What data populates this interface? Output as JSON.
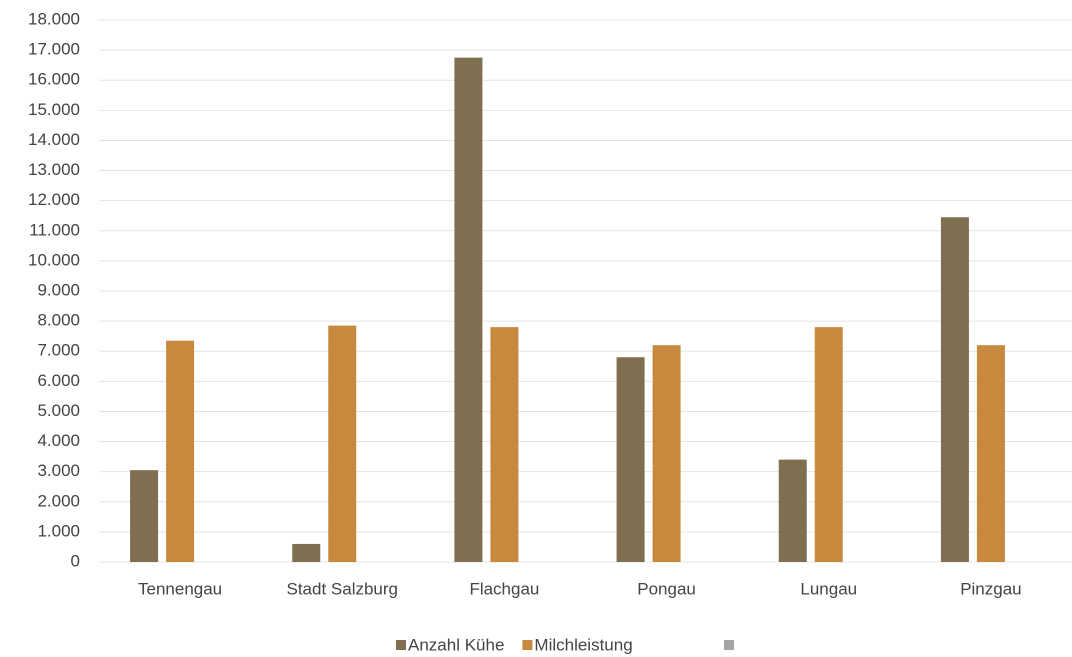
{
  "chart_data": {
    "type": "bar",
    "categories": [
      "Tennengau",
      "Stadt Salzburg",
      "Flachgau",
      "Pongau",
      "Lungau",
      "Pinzgau"
    ],
    "series": [
      {
        "name": "Anzahl Kühe",
        "color": "#7f6e50",
        "values": [
          3050,
          600,
          16750,
          6800,
          3400,
          11450
        ]
      },
      {
        "name": "Milchleistung",
        "color": "#c8893f",
        "values": [
          7350,
          7850,
          7800,
          7200,
          7800,
          7200
        ]
      }
    ],
    "ylim": [
      0,
      18000
    ],
    "yticks": [
      0,
      {
        "value": 1000,
        "label": "1.000"
      },
      {
        "value": 2000,
        "label": "2.000"
      },
      {
        "value": 3000,
        "label": "3.000"
      },
      {
        "value": 4000,
        "label": "4.000"
      },
      {
        "value": 5000,
        "label": "5.000"
      },
      {
        "value": 6000,
        "label": "6.000"
      },
      {
        "value": 7000,
        "label": "7.000"
      },
      {
        "value": 8000,
        "label": "8.000"
      },
      {
        "value": 9000,
        "label": "9.000"
      },
      {
        "value": 10000,
        "label": "10.000"
      },
      {
        "value": 11000,
        "label": "11.000"
      },
      {
        "value": 12000,
        "label": "12.000"
      },
      {
        "value": 13000,
        "label": "13.000"
      },
      {
        "value": 14000,
        "label": "14.000"
      },
      {
        "value": 15000,
        "label": "15.000"
      },
      {
        "value": 16000,
        "label": "16.000"
      },
      {
        "value": 17000,
        "label": "17.000"
      },
      {
        "value": 18000,
        "label": "18.000"
      }
    ],
    "grid": true
  }
}
